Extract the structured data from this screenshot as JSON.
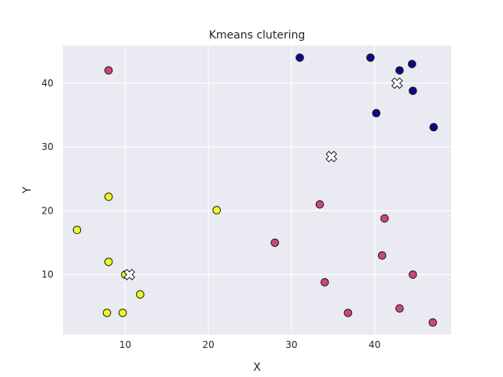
{
  "chart_data": {
    "type": "scatter",
    "title": "Kmeans clutering",
    "xlabel": "X",
    "ylabel": "Y",
    "xlim": [
      2.5,
      49.2
    ],
    "ylim": [
      0.6,
      45.9
    ],
    "xticks": [
      10,
      20,
      30,
      40
    ],
    "yticks": [
      10,
      20,
      30,
      40
    ],
    "grid": true,
    "background": "#eaeaf2",
    "series": [
      {
        "color": "#0d0887",
        "points": [
          {
            "x": 31,
            "y": 44
          },
          {
            "x": 39.5,
            "y": 44
          },
          {
            "x": 44.5,
            "y": 43
          },
          {
            "x": 43,
            "y": 42
          },
          {
            "x": 44.6,
            "y": 38.8
          },
          {
            "x": 40.2,
            "y": 35.3
          },
          {
            "x": 47.1,
            "y": 33.1
          }
        ]
      },
      {
        "color": "#cc4778",
        "points": [
          {
            "x": 8,
            "y": 42
          },
          {
            "x": 33.4,
            "y": 21
          },
          {
            "x": 41.2,
            "y": 18.8
          },
          {
            "x": 28,
            "y": 15
          },
          {
            "x": 40.9,
            "y": 13
          },
          {
            "x": 44.6,
            "y": 10
          },
          {
            "x": 34,
            "y": 8.8
          },
          {
            "x": 36.8,
            "y": 4
          },
          {
            "x": 43,
            "y": 4.7
          },
          {
            "x": 47,
            "y": 2.5
          }
        ]
      },
      {
        "color": "#f0f921",
        "points": [
          {
            "x": 8,
            "y": 22.2
          },
          {
            "x": 21,
            "y": 20.1
          },
          {
            "x": 4.2,
            "y": 17
          },
          {
            "x": 8,
            "y": 12
          },
          {
            "x": 10,
            "y": 10
          },
          {
            "x": 11.8,
            "y": 6.9
          },
          {
            "x": 7.8,
            "y": 4
          },
          {
            "x": 9.7,
            "y": 4
          }
        ]
      }
    ],
    "centroids": [
      {
        "x": 42.7,
        "y": 40
      },
      {
        "x": 34.8,
        "y": 28.5
      },
      {
        "x": 10.5,
        "y": 10
      }
    ]
  }
}
